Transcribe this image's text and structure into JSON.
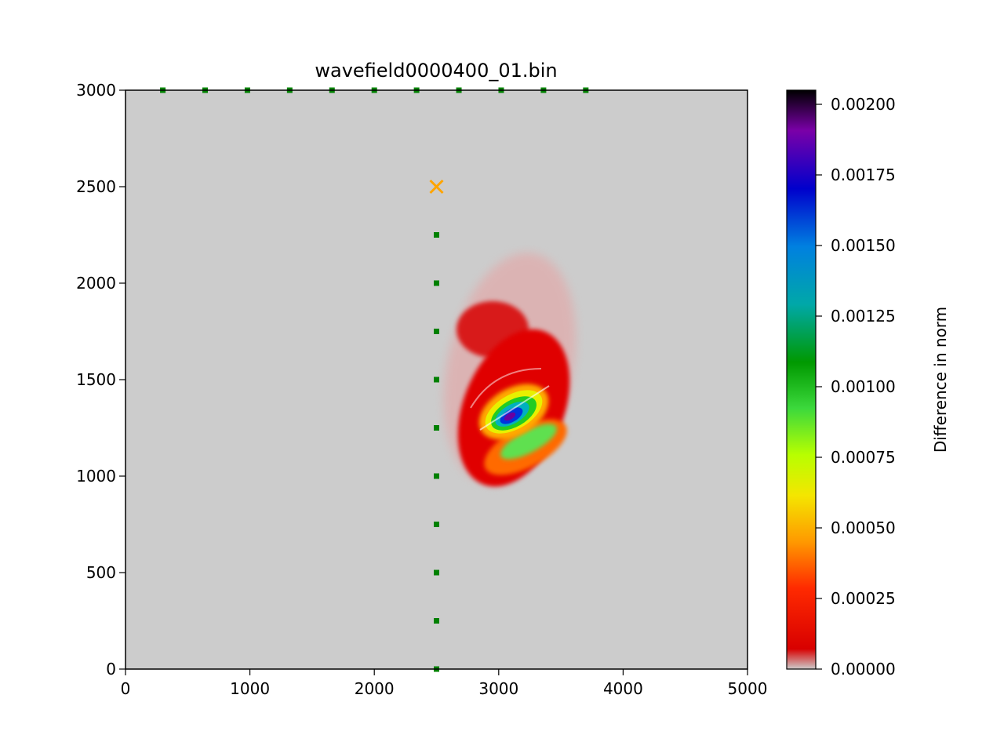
{
  "chart_data": {
    "type": "heatmap",
    "title": "wavefield0000400_01.bin",
    "xlabel": "",
    "ylabel": "",
    "xlim": [
      0,
      5000
    ],
    "ylim": [
      0,
      3000
    ],
    "x_ticks": [
      0,
      1000,
      2000,
      3000,
      4000,
      5000
    ],
    "y_ticks": [
      0,
      500,
      1000,
      1500,
      2000,
      2500,
      3000
    ],
    "x_tick_labels": [
      "0",
      "1000",
      "2000",
      "3000",
      "4000",
      "5000"
    ],
    "y_tick_labels": [
      "0",
      "500",
      "1000",
      "1500",
      "2000",
      "2500",
      "3000"
    ],
    "background_color": "#cccccc",
    "colorbar": {
      "label": "Difference in norm",
      "range": [
        0,
        0.00205
      ],
      "ticks": [
        0,
        0.00025,
        0.0005,
        0.00075,
        0.001,
        0.00125,
        0.0015,
        0.00175,
        0.002
      ],
      "tick_labels": [
        "0.00000",
        "0.00025",
        "0.00050",
        "0.00075",
        "0.00100",
        "0.00125",
        "0.00150",
        "0.00175",
        "0.00200"
      ],
      "colormap": [
        "#cccccc",
        "#d80000",
        "#ff2a00",
        "#ff9900",
        "#f4e600",
        "#b8ff00",
        "#3cd93c",
        "#009900",
        "#00a8a8",
        "#0080e0",
        "#0000cc",
        "#7a00a8",
        "#000000"
      ]
    },
    "source": {
      "x": 2500,
      "y": 2500,
      "marker": "x",
      "color": "#ffa500"
    },
    "receivers": {
      "color": "#008000",
      "marker": "square",
      "points": [
        [
          300,
          3000
        ],
        [
          640,
          3000
        ],
        [
          980,
          3000
        ],
        [
          1320,
          3000
        ],
        [
          1660,
          3000
        ],
        [
          2000,
          3000
        ],
        [
          2340,
          3000
        ],
        [
          2680,
          3000
        ],
        [
          3020,
          3000
        ],
        [
          3360,
          3000
        ],
        [
          3700,
          3000
        ],
        [
          2500,
          2250
        ],
        [
          2500,
          2000
        ],
        [
          2500,
          1750
        ],
        [
          2500,
          1500
        ],
        [
          2500,
          1250
        ],
        [
          2500,
          1000
        ],
        [
          2500,
          750
        ],
        [
          2500,
          500
        ],
        [
          2500,
          250
        ],
        [
          2500,
          0
        ]
      ]
    },
    "wavefield_anomaly": {
      "center": [
        3080,
        1310
      ],
      "peak_value": 0.00205
    }
  }
}
